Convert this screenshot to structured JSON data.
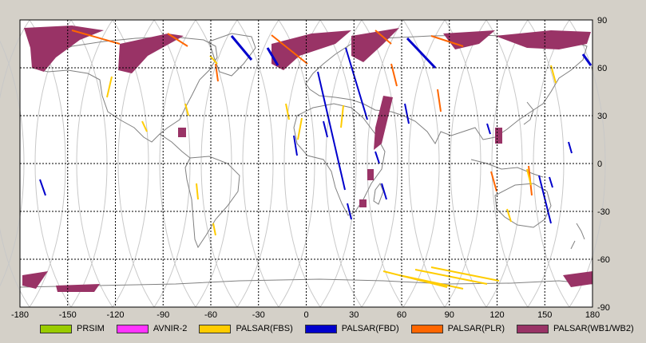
{
  "map": {
    "x_ticks": [
      "-180",
      "-150",
      "-120",
      "-90",
      "-60",
      "-30",
      "0",
      "30",
      "60",
      "90",
      "120",
      "150",
      "180"
    ],
    "y_ticks": [
      "90",
      "60",
      "30",
      "0",
      "-30",
      "-60",
      "-90"
    ],
    "colors": {
      "frame_bg": "#d4d0c8",
      "map_bg": "#ffffff",
      "grid": "#000000",
      "coast": "#808080",
      "orbit": "#c8c8c8"
    }
  },
  "legend": [
    {
      "label": "PRSIM",
      "color": "#99cc00"
    },
    {
      "label": "AVNIR-2",
      "color": "#ff33ff"
    },
    {
      "label": "PALSAR(FBS)",
      "color": "#ffcc00"
    },
    {
      "label": "PALSAR(FBD)",
      "color": "#0000cc"
    },
    {
      "label": "PALSAR(PLR)",
      "color": "#ff6600"
    },
    {
      "label": "PALSAR(WB1/WB2)",
      "color": "#993366"
    }
  ]
}
